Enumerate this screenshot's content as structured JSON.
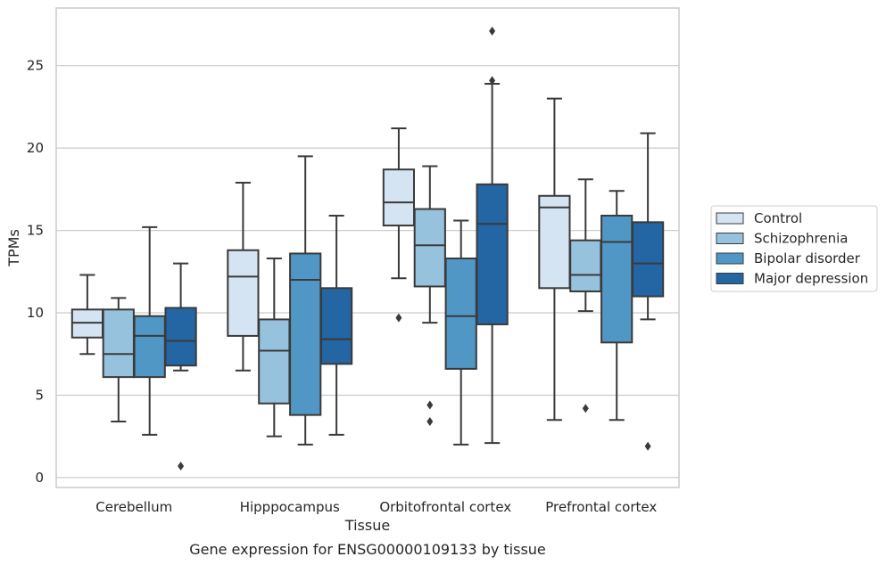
{
  "caption": "Gene expression for ENSG00000109133 by tissue",
  "colors": {
    "Control": "#d5e4f3",
    "Schizophrenia": "#96c2dd",
    "Bipolar disorder": "#5197c6",
    "Major depression": "#2465a4",
    "edge": "#3a3a3a",
    "grid": "#cccccc",
    "frame": "#cccccc"
  },
  "chart_data": {
    "type": "box",
    "xlabel": "Tissue",
    "ylabel": "TPMs",
    "ylim": [
      -0.6,
      28.5
    ],
    "yticks": [
      0,
      5,
      10,
      15,
      20,
      25
    ],
    "grid": "horizontal",
    "legend_placement": "outside-right",
    "categories": [
      "Cerebellum",
      "Hipppocampus",
      "Orbitofrontal cortex",
      "Prefrontal cortex"
    ],
    "series": [
      {
        "name": "Control",
        "boxes": [
          {
            "whislo": 7.5,
            "q1": 8.5,
            "med": 9.4,
            "q3": 10.2,
            "whishi": 12.3,
            "fliers": []
          },
          {
            "whislo": 6.5,
            "q1": 8.6,
            "med": 12.2,
            "q3": 13.8,
            "whishi": 17.9,
            "fliers": []
          },
          {
            "whislo": 12.1,
            "q1": 15.3,
            "med": 16.7,
            "q3": 18.7,
            "whishi": 21.2,
            "fliers": [
              9.7
            ]
          },
          {
            "whislo": 3.5,
            "q1": 11.5,
            "med": 16.4,
            "q3": 17.1,
            "whishi": 23.0,
            "fliers": []
          }
        ]
      },
      {
        "name": "Schizophrenia",
        "boxes": [
          {
            "whislo": 3.4,
            "q1": 6.1,
            "med": 7.5,
            "q3": 10.2,
            "whishi": 10.9,
            "fliers": []
          },
          {
            "whislo": 2.5,
            "q1": 4.5,
            "med": 7.7,
            "q3": 9.6,
            "whishi": 13.3,
            "fliers": []
          },
          {
            "whislo": 9.4,
            "q1": 11.6,
            "med": 14.1,
            "q3": 16.3,
            "whishi": 18.9,
            "fliers": [
              4.4,
              3.4
            ]
          },
          {
            "whislo": 10.1,
            "q1": 11.3,
            "med": 12.3,
            "q3": 14.4,
            "whishi": 18.1,
            "fliers": [
              4.2
            ]
          }
        ]
      },
      {
        "name": "Bipolar disorder",
        "boxes": [
          {
            "whislo": 2.6,
            "q1": 6.1,
            "med": 8.6,
            "q3": 9.8,
            "whishi": 15.2,
            "fliers": []
          },
          {
            "whislo": 2.0,
            "q1": 3.8,
            "med": 12.0,
            "q3": 13.6,
            "whishi": 19.5,
            "fliers": []
          },
          {
            "whislo": 2.0,
            "q1": 6.6,
            "med": 9.8,
            "q3": 13.3,
            "whishi": 15.6,
            "fliers": []
          },
          {
            "whislo": 3.5,
            "q1": 8.2,
            "med": 14.3,
            "q3": 15.9,
            "whishi": 17.4,
            "fliers": []
          }
        ]
      },
      {
        "name": "Major depression",
        "boxes": [
          {
            "whislo": 6.5,
            "q1": 6.8,
            "med": 8.3,
            "q3": 10.3,
            "whishi": 13.0,
            "fliers": [
              0.7
            ]
          },
          {
            "whislo": 2.6,
            "q1": 6.9,
            "med": 8.4,
            "q3": 11.5,
            "whishi": 15.9,
            "fliers": []
          },
          {
            "whislo": 2.1,
            "q1": 9.3,
            "med": 15.4,
            "q3": 17.8,
            "whishi": 23.9,
            "fliers": [
              27.1,
              24.1
            ]
          },
          {
            "whislo": 9.6,
            "q1": 11.0,
            "med": 13.0,
            "q3": 15.5,
            "whishi": 20.9,
            "fliers": [
              1.9
            ]
          }
        ]
      }
    ]
  }
}
